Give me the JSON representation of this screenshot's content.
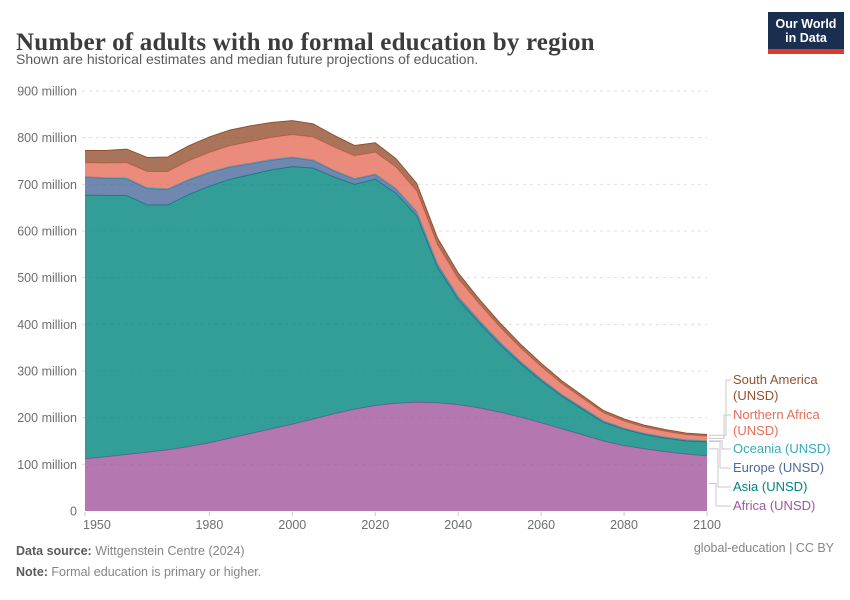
{
  "header": {
    "title": "Number of adults with no formal education by region",
    "subtitle": "Shown are historical estimates and median future projections of education.",
    "logo": {
      "line1": "Our World",
      "line2": "in Data",
      "bg": "#1a2e4f",
      "accent": "#dc3a2b"
    }
  },
  "colors": {
    "grid": "#dddddd",
    "axis_text": "#6e6e6e",
    "connector": "#c9c9c9",
    "title": "#3c3c3c",
    "subtitle": "#5b5b5b",
    "footer": "#858585"
  },
  "chart_data": {
    "type": "area",
    "stacked": true,
    "title": "Number of adults with no formal education by region",
    "xlabel": "",
    "ylabel": "",
    "unit": "million",
    "x_range": [
      1950,
      2100
    ],
    "x_ticks": [
      1950,
      1980,
      2000,
      2020,
      2040,
      2060,
      2080,
      2100
    ],
    "y_range_millions": [
      0,
      900
    ],
    "y_ticks": [
      {
        "value": 0,
        "label": "0"
      },
      {
        "value": 100,
        "label": "100 million"
      },
      {
        "value": 200,
        "label": "200 million"
      },
      {
        "value": 300,
        "label": "300 million"
      },
      {
        "value": 400,
        "label": "400 million"
      },
      {
        "value": 500,
        "label": "500 million"
      },
      {
        "value": 600,
        "label": "600 million"
      },
      {
        "value": 700,
        "label": "700 million"
      },
      {
        "value": 800,
        "label": "800 million"
      },
      {
        "value": 900,
        "label": "900 million"
      }
    ],
    "x": [
      1950,
      1955,
      1960,
      1965,
      1970,
      1975,
      1980,
      1985,
      1990,
      1995,
      2000,
      2005,
      2010,
      2015,
      2020,
      2025,
      2030,
      2035,
      2040,
      2045,
      2050,
      2055,
      2060,
      2065,
      2070,
      2075,
      2080,
      2085,
      2090,
      2095,
      2100
    ],
    "series": [
      {
        "name": "Africa (UNSD)",
        "color": "#A2559C",
        "values": [
          112,
          116,
          121,
          126,
          131,
          138,
          146,
          156,
          166,
          176,
          186,
          197,
          208,
          218,
          226,
          231,
          233,
          232,
          228,
          221,
          212,
          201,
          189,
          176,
          163,
          150,
          140,
          133,
          127,
          122,
          118
        ]
      },
      {
        "name": "Asia (UNSD)",
        "color": "#00847E",
        "values": [
          565,
          560,
          555,
          530,
          525,
          540,
          550,
          555,
          555,
          555,
          552,
          538,
          508,
          482,
          485,
          450,
          400,
          290,
          225,
          183,
          145,
          115,
          90,
          70,
          55,
          40,
          35,
          31,
          29,
          28,
          30
        ]
      },
      {
        "name": "Europe (UNSD)",
        "color": "#4C6A9C",
        "values": [
          38,
          37,
          36,
          35,
          33,
          31,
          29,
          26,
          23,
          21,
          19,
          16,
          13,
          11,
          10,
          9,
          8,
          7,
          6,
          5,
          5,
          4,
          4,
          3,
          3,
          3,
          2,
          2,
          2,
          2,
          2
        ]
      },
      {
        "name": "Oceania (UNSD)",
        "color": "#38AABA",
        "values": [
          1.5,
          1.5,
          1.5,
          1.5,
          1.5,
          1.5,
          1.5,
          1.5,
          1.5,
          1.5,
          1.5,
          1.4,
          1.3,
          1.2,
          1.1,
          1,
          1,
          0.9,
          0.9,
          0.8,
          0.8,
          0.7,
          0.7,
          0.7,
          0.6,
          0.6,
          0.6,
          0.6,
          0.5,
          0.5,
          0.5
        ]
      },
      {
        "name": "Northern Africa (UNSD)",
        "color": "#E56E5A",
        "values": [
          30,
          31,
          33,
          35,
          37,
          40,
          42,
          44,
          46,
          47,
          48,
          49,
          50,
          49,
          47,
          46,
          44,
          41,
          38,
          35,
          32,
          29,
          26,
          23,
          20,
          17,
          15,
          13,
          12,
          11,
          10
        ]
      },
      {
        "name": "South America (UNSD)",
        "color": "#94512F",
        "values": [
          26,
          27,
          29,
          30,
          31,
          32,
          33,
          34,
          34,
          32,
          30,
          28,
          25,
          22,
          20,
          18,
          16,
          14,
          12,
          10,
          9,
          8,
          7,
          6,
          5.5,
          5,
          4.5,
          4,
          4,
          3.5,
          3.5
        ]
      }
    ],
    "legend_position": "right",
    "grid": true
  },
  "footer": {
    "source_label": "Data source:",
    "source_value": " Wittgenstein Centre (2024)",
    "note_label": "Note:",
    "note_value": " Formal education is primary or higher.",
    "license": "global-education | CC BY"
  }
}
